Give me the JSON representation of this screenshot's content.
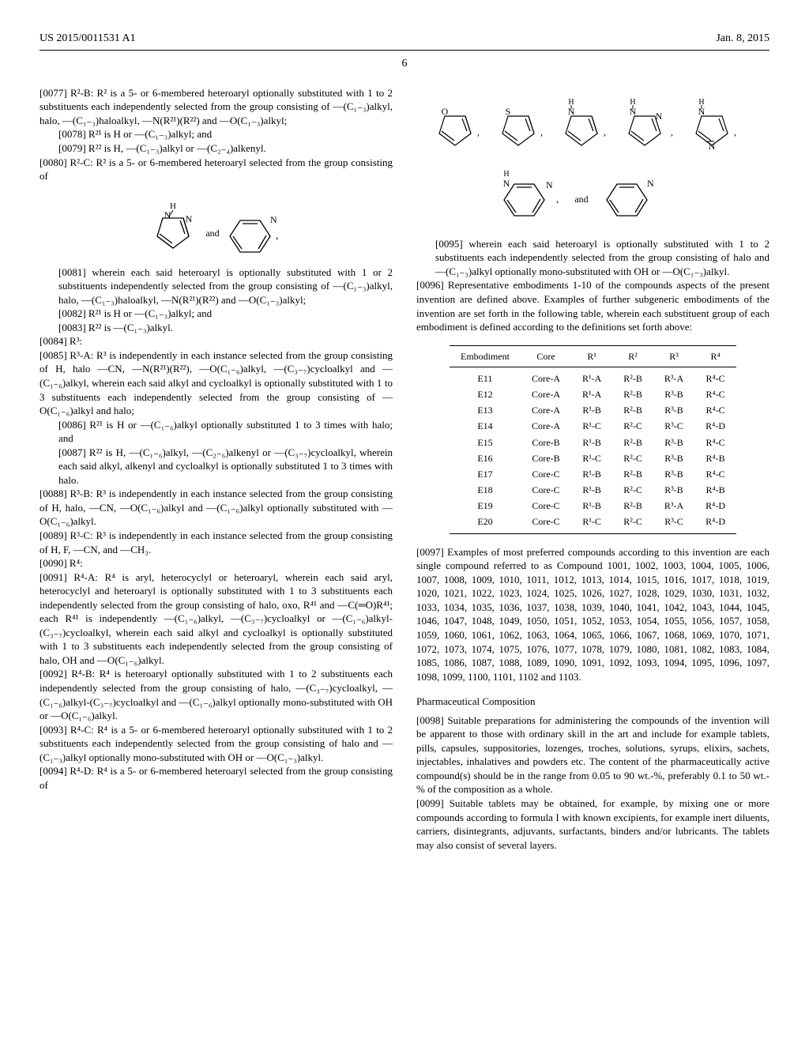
{
  "header": {
    "pub_number": "US 2015/0011531 A1",
    "pub_date": "Jan. 8, 2015"
  },
  "page_number": "6",
  "left_col": {
    "p0077": "[0077]  R²-B: R² is a 5- or 6-membered heteroaryl optionally substituted with 1 to 2 substituents each independently selected from the group consisting of —(C₁₋₃)alkyl, halo, —(C₁₋₃)haloalkyl, —N(R²¹)(R²²) and —O(C₁₋₃)alkyl;",
    "p0078": "[0078]  R²¹ is H or —(C₁₋₃)alkyl; and",
    "p0079": "[0079]  R²² is H, —(C₁₋₃)alkyl or —(C₂₋₄)alkenyl.",
    "p0080": "[0080]  R²-C: R² is a 5- or 6-membered heteroaryl selected from the group consisting of",
    "p0081": "[0081]  wherein each said heteroaryl is optionally substituted with 1 or 2 substituents independently selected from the group consisting of —(C₁₋₃)alkyl, halo, —(C₁₋₃)haloalkyl, —N(R²¹)(R²²) and —O(C₁₋₃)alkyl;",
    "p0082": "[0082]  R²¹ is H or —(C₁₋₃)alkyl; and",
    "p0083": "[0083]  R²² is —(C₁₋₃)alkyl.",
    "p0084": "[0084]  R³:",
    "p0085": "[0085]  R³-A: R³ is independently in each instance selected from the group consisting of H, halo —CN, —N(R²¹)(R²²), —O(C₁₋₆)alkyl, —(C₃₋₇)cycloalkyl and —(C₁₋₆)alkyl, wherein each said alkyl and cycloalkyl is optionally substituted with 1 to 3 substituents each independently selected from the group consisting of —O(C₁₋₆)alkyl and halo;",
    "p0086": "[0086]  R²¹ is H or —(C₁₋₆)alkyl optionally substituted 1 to 3 times with halo; and",
    "p0087": "[0087]  R²² is H, —(C₁₋₆)alkyl, —(C₂₋₆)alkenyl or —(C₃₋₇)cycloalkyl, wherein each said alkyl, alkenyl and cycloalkyl is optionally substituted 1 to 3 times with halo.",
    "p0088": "[0088]  R³-B: R³ is independently in each instance selected from the group consisting of H, halo, —CN, —O(C₁₋₆)alkyl and —(C₁₋₆)alkyl optionally substituted with —O(C₁₋₆)alkyl.",
    "p0089": "[0089]  R³-C: R³ is independently in each instance selected from the group consisting of H, F, —CN, and —CH₃.",
    "p0090": "[0090]  R⁴:",
    "p0091": "[0091]  R⁴-A: R⁴ is aryl, heterocyclyl or heteroaryl, wherein each said aryl, heterocyclyl and heteroaryl is optionally substituted with 1 to 3 substituents each independently selected from the group consisting of halo, oxo, R⁴¹ and —C(═O)R⁴¹; each R⁴¹ is independently —(C₁₋₆)alkyl, —(C₃₋₇)cycloalkyl or —(C₁₋₆)alkyl-(C₃₋₇)cycloalkyl, wherein each said alkyl and cycloalkyl is optionally substituted with 1 to 3 substituents each independently selected from the group consisting of halo, OH and —O(C₁₋₆)alkyl.",
    "p0092": "[0092]  R⁴-B: R⁴ is heteroaryl optionally substituted with 1 to 2 substituents each independently selected from the group consisting of halo, —(C₃₋₇)cycloalkyl, —(C₁₋₆)alkyl-(C₃₋₇)cycloalkyl and —(C₁₋₆)alkyl optionally mono-substituted with OH or —O(C₁₋₆)alkyl.",
    "p0093": "[0093]  R⁴-C: R⁴ is a 5- or 6-membered heteroaryl optionally substituted with 1 to 2 substituents each independently selected from the group consisting of halo and —(C₁₋₃)alkyl optionally mono-substituted with OH or —O(C₁₋₃)alkyl.",
    "p0094": "[0094]  R⁴-D: R⁴ is a 5- or 6-membered heteroaryl selected from the group consisting of",
    "struct1_label_and": "and",
    "struct1_atoms": {
      "h": "H",
      "n1": "N",
      "n2": "N"
    }
  },
  "right_col": {
    "p0095": "[0095]  wherein each said heteroaryl is optionally substituted with 1 to 2 substituents each independently selected from the group consisting of halo and —(C₁₋₃)alkyl optionally mono-substituted with OH or —O(C₁₋₃)alkyl.",
    "p0096": "[0096]  Representative embodiments 1-10 of the compounds aspects of the present invention are defined above. Examples of further subgeneric embodiments of the invention are set forth in the following table, wherein each substituent group of each embodiment is defined according to the definitions set forth above:",
    "table": {
      "columns": [
        "Embodiment",
        "Core",
        "R¹",
        "R²",
        "R³",
        "R⁴"
      ],
      "rows": [
        [
          "E11",
          "Core-A",
          "R¹-A",
          "R²-B",
          "R³-A",
          "R⁴-C"
        ],
        [
          "E12",
          "Core-A",
          "R¹-A",
          "R²-B",
          "R³-B",
          "R⁴-C"
        ],
        [
          "E13",
          "Core-A",
          "R¹-B",
          "R²-B",
          "R³-B",
          "R⁴-C"
        ],
        [
          "E14",
          "Core-A",
          "R¹-C",
          "R²-C",
          "R³-C",
          "R⁴-D"
        ],
        [
          "E15",
          "Core-B",
          "R¹-B",
          "R²-B",
          "R³-B",
          "R⁴-C"
        ],
        [
          "E16",
          "Core-B",
          "R¹-C",
          "R²-C",
          "R³-B",
          "R⁴-B"
        ],
        [
          "E17",
          "Core-C",
          "R¹-B",
          "R²-B",
          "R³-B",
          "R⁴-C"
        ],
        [
          "E18",
          "Core-C",
          "R¹-B",
          "R²-C",
          "R³-B",
          "R⁴-B"
        ],
        [
          "E19",
          "Core-C",
          "R¹-B",
          "R²-B",
          "R³-A",
          "R⁴-D"
        ],
        [
          "E20",
          "Core-C",
          "R¹-C",
          "R²-C",
          "R³-C",
          "R⁴-D"
        ]
      ]
    },
    "p0097": "[0097]  Examples of most preferred compounds according to this invention are each single compound referred to as Compound 1001, 1002, 1003, 1004, 1005, 1006, 1007, 1008, 1009, 1010, 1011, 1012, 1013, 1014, 1015, 1016, 1017, 1018, 1019, 1020, 1021, 1022, 1023, 1024, 1025, 1026, 1027, 1028, 1029, 1030, 1031, 1032, 1033, 1034, 1035, 1036, 1037, 1038, 1039, 1040, 1041, 1042, 1043, 1044, 1045, 1046, 1047, 1048, 1049, 1050, 1051, 1052, 1053, 1054, 1055, 1056, 1057, 1058, 1059, 1060, 1061, 1062, 1063, 1064, 1065, 1066, 1067, 1068, 1069, 1070, 1071, 1072, 1073, 1074, 1075, 1076, 1077, 1078, 1079, 1080, 1081, 1082, 1083, 1084, 1085, 1086, 1087, 1088, 1089, 1090, 1091, 1092, 1093, 1094, 1095, 1096, 1097, 1098, 1099, 1100, 1101, 1102 and 1103.",
    "heading_pharma": "Pharmaceutical Composition",
    "p0098": "[0098]  Suitable preparations for administering the compounds of the invention will be apparent to those with ordinary skill in the art and include for example tablets, pills, capsules, suppositories, lozenges, troches, solutions, syrups, elixirs, sachets, injectables, inhalatives and powders etc. The content of the pharmaceutically active compound(s) should be in the range from 0.05 to 90 wt.-%, preferably 0.1 to 50 wt.-% of the composition as a whole.",
    "p0099": "[0099]  Suitable tablets may be obtained, for example, by mixing one or more compounds according to formula I with known excipients, for example inert diluents, carriers, disintegrants, adjuvants, surfactants, binders and/or lubricants. The tablets may also consist of several layers.",
    "struct2_label_and": "and",
    "struct2_atoms": {
      "o": "O",
      "s": "S",
      "h": "H",
      "n": "N"
    }
  }
}
